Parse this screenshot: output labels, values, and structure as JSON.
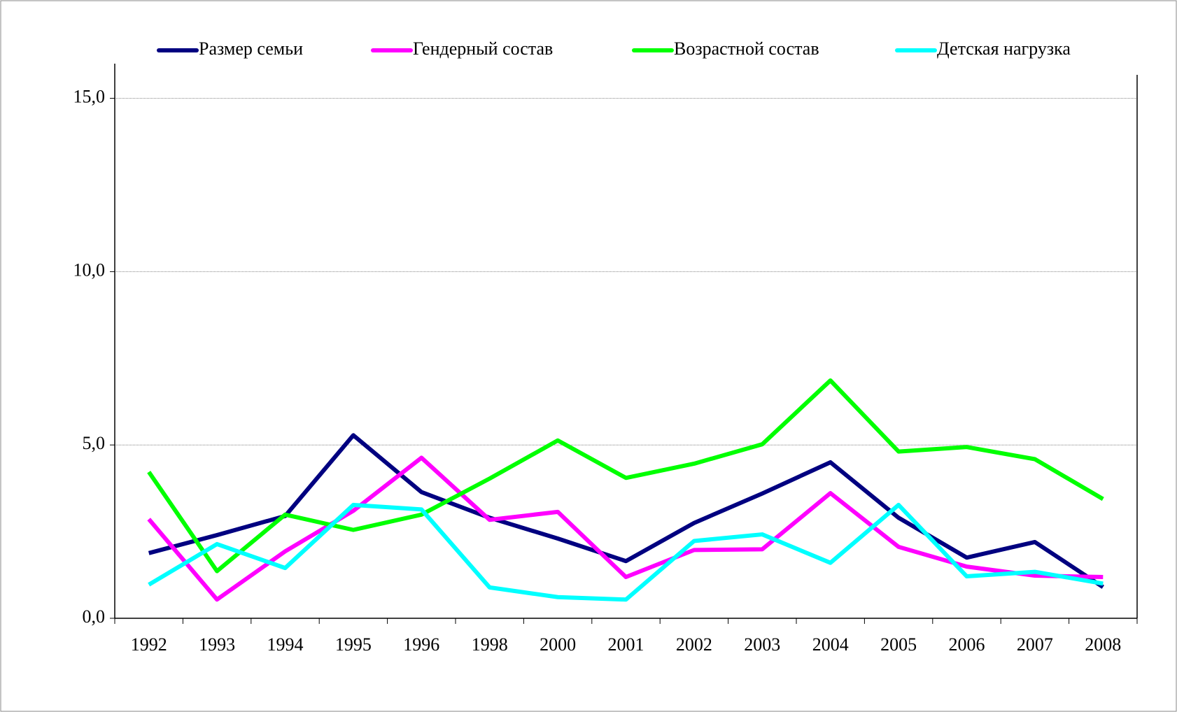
{
  "chart_data": {
    "type": "line",
    "categories": [
      "1992",
      "1993",
      "1994",
      "1995",
      "1996",
      "1998",
      "2000",
      "2001",
      "2002",
      "2003",
      "2004",
      "2005",
      "2006",
      "2007",
      "2008"
    ],
    "series": [
      {
        "name": "Размер семьи",
        "color": "#000080",
        "values": [
          1.88,
          2.4,
          2.95,
          5.28,
          3.64,
          2.9,
          2.3,
          1.65,
          2.75,
          3.6,
          4.5,
          2.9,
          1.75,
          2.2,
          0.9
        ]
      },
      {
        "name": "Гендерный состав",
        "color": "#ff00ff",
        "values": [
          2.86,
          0.54,
          1.93,
          3.1,
          4.63,
          2.84,
          3.07,
          1.19,
          1.97,
          1.99,
          3.61,
          2.06,
          1.49,
          1.23,
          1.19
        ]
      },
      {
        "name": "Возрастной состав",
        "color": "#00ff00",
        "values": [
          4.22,
          1.36,
          2.99,
          2.55,
          2.99,
          4.03,
          5.13,
          4.05,
          4.46,
          5.02,
          6.86,
          4.81,
          4.94,
          4.59,
          3.44
        ]
      },
      {
        "name": "Детская нагрузка",
        "color": "#00ffff",
        "values": [
          0.97,
          2.14,
          1.45,
          3.27,
          3.14,
          0.89,
          0.61,
          0.54,
          2.23,
          2.42,
          1.6,
          3.27,
          1.21,
          1.34,
          1.0
        ]
      }
    ],
    "ylim": [
      0,
      16
    ],
    "yticks": [
      {
        "value": 0,
        "label": "0,0"
      },
      {
        "value": 5,
        "label": "5,0"
      },
      {
        "value": 10,
        "label": "10,0"
      },
      {
        "value": 15,
        "label": "15,0"
      }
    ],
    "grid": true,
    "legend": "top"
  }
}
